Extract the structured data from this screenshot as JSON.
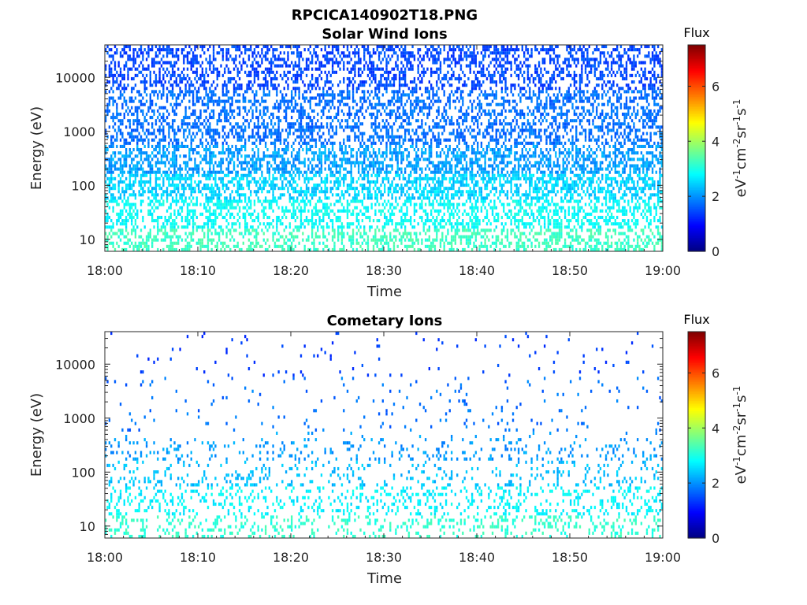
{
  "figure": {
    "filename_title": "RPCICA140902T18.PNG"
  },
  "colorbar": {
    "title": "Flux",
    "label": "eV-1cm-2sr-1s-1",
    "range": [
      0,
      7.5
    ],
    "ticks": [
      "0",
      "2",
      "4",
      "6"
    ],
    "colormap": "jet"
  },
  "chart_data": [
    {
      "type": "heatmap",
      "title": "Solar Wind Ions",
      "xlabel": "Time",
      "ylabel": "Energy (eV)",
      "x_ticks": [
        "18:00",
        "18:10",
        "18:20",
        "18:30",
        "18:40",
        "18:50",
        "19:00"
      ],
      "x_range_minutes": [
        0,
        60
      ],
      "y_scale": "log",
      "y_ticks": [
        "10",
        "100",
        "1000",
        "10000"
      ],
      "y_range": [
        6,
        40000
      ],
      "density": 0.78,
      "flux_by_energy_band": [
        {
          "energy": 11,
          "flux_range": [
            3.0,
            3.5
          ]
        },
        {
          "energy": 30,
          "flux_range": [
            2.6,
            3.1
          ]
        },
        {
          "energy": 100,
          "flux_range": [
            2.2,
            2.8
          ]
        },
        {
          "energy": 300,
          "flux_range": [
            1.8,
            2.4
          ]
        },
        {
          "energy": 1000,
          "flux_range": [
            1.5,
            2.0
          ]
        },
        {
          "energy": 10000,
          "flux_range": [
            1.2,
            1.7
          ]
        }
      ]
    },
    {
      "type": "heatmap",
      "title": "Cometary Ions",
      "xlabel": "Time",
      "ylabel": "Energy (eV)",
      "x_ticks": [
        "18:00",
        "18:10",
        "18:20",
        "18:30",
        "18:40",
        "18:50",
        "19:00"
      ],
      "x_range_minutes": [
        0,
        60
      ],
      "y_scale": "log",
      "y_ticks": [
        "10",
        "100",
        "1000",
        "10000"
      ],
      "y_range": [
        6,
        40000
      ],
      "density": 0.22,
      "flux_by_energy_band": [
        {
          "energy": 11,
          "flux_range": [
            2.9,
            3.4
          ]
        },
        {
          "energy": 30,
          "flux_range": [
            2.5,
            3.0
          ]
        },
        {
          "energy": 100,
          "flux_range": [
            2.1,
            2.6
          ]
        },
        {
          "energy": 300,
          "flux_range": [
            1.8,
            2.3
          ]
        },
        {
          "energy": 1000,
          "flux_range": [
            1.5,
            2.0
          ]
        },
        {
          "energy": 10000,
          "flux_range": [
            1.2,
            1.6
          ]
        }
      ]
    }
  ]
}
